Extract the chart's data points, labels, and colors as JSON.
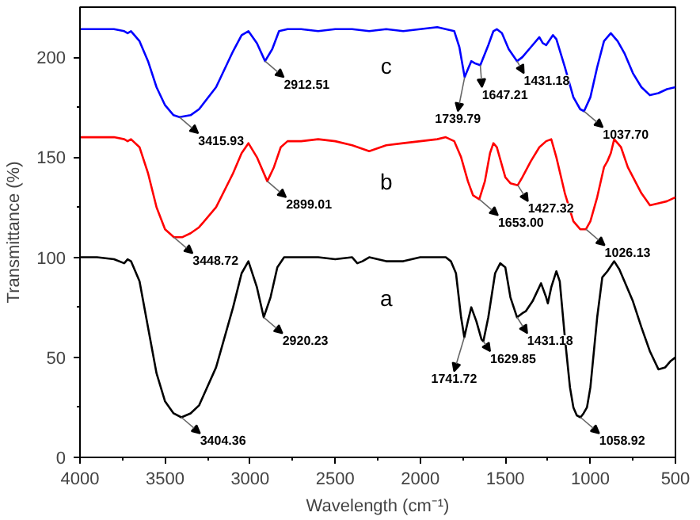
{
  "chart_data": {
    "type": "line",
    "xlabel": "Wavelength (cm⁻¹)",
    "ylabel": "Transmittance (%)",
    "xlim": [
      4000,
      500
    ],
    "ylim": [
      0,
      225
    ],
    "xticks": [
      4000,
      3500,
      3000,
      2500,
      2000,
      1500,
      1000,
      500
    ],
    "yticks": [
      0,
      50,
      100,
      150,
      200
    ],
    "grid": false,
    "legend": false,
    "marker": "none",
    "line_style": "solid",
    "series": [
      {
        "name": "a",
        "color": "#000000",
        "x": [
          4000,
          3900,
          3800,
          3740,
          3720,
          3700,
          3650,
          3600,
          3550,
          3500,
          3450,
          3404,
          3350,
          3300,
          3200,
          3100,
          3050,
          3010,
          2960,
          2920,
          2880,
          2840,
          2800,
          2700,
          2600,
          2500,
          2400,
          2370,
          2340,
          2300,
          2200,
          2100,
          2000,
          1900,
          1850,
          1820,
          1790,
          1760,
          1741,
          1720,
          1700,
          1670,
          1640,
          1629,
          1600,
          1560,
          1530,
          1500,
          1470,
          1431,
          1400,
          1380,
          1340,
          1290,
          1260,
          1250,
          1230,
          1200,
          1180,
          1150,
          1120,
          1100,
          1080,
          1058,
          1040,
          1020,
          1000,
          960,
          930,
          900,
          860,
          830,
          800,
          750,
          700,
          650,
          600,
          560,
          530,
          500
        ],
        "values": [
          100,
          100,
          99,
          97,
          99,
          98,
          88,
          65,
          42,
          28,
          22,
          20,
          22,
          26,
          45,
          75,
          92,
          98,
          85,
          70,
          80,
          95,
          100,
          100,
          100,
          99,
          100,
          97,
          98,
          100,
          98,
          98,
          100,
          100,
          100,
          98,
          92,
          70,
          60,
          68,
          75,
          68,
          59,
          58,
          70,
          92,
          97,
          95,
          80,
          70,
          72,
          73,
          78,
          87,
          80,
          77,
          85,
          93,
          88,
          60,
          35,
          25,
          21,
          20,
          22,
          25,
          35,
          70,
          90,
          93,
          98,
          94,
          88,
          78,
          65,
          53,
          44,
          45,
          48,
          50
        ]
      },
      {
        "name": "b",
        "color": "#ff0000",
        "x": [
          4000,
          3900,
          3800,
          3740,
          3720,
          3700,
          3650,
          3600,
          3550,
          3500,
          3448,
          3400,
          3350,
          3300,
          3200,
          3100,
          3050,
          3010,
          2960,
          2899,
          2860,
          2820,
          2780,
          2700,
          2600,
          2500,
          2400,
          2300,
          2200,
          2100,
          2000,
          1900,
          1850,
          1800,
          1760,
          1720,
          1690,
          1653,
          1620,
          1590,
          1570,
          1550,
          1500,
          1470,
          1427,
          1400,
          1350,
          1300,
          1260,
          1230,
          1200,
          1150,
          1100,
          1060,
          1026,
          1000,
          960,
          920,
          900,
          880,
          860,
          820,
          780,
          700,
          650,
          600,
          550,
          500
        ],
        "values": [
          160,
          160,
          160,
          159,
          158,
          159,
          155,
          142,
          125,
          114,
          110,
          110,
          112,
          115,
          125,
          142,
          152,
          157,
          150,
          138,
          145,
          155,
          158,
          158,
          159,
          158,
          156,
          153,
          156,
          157,
          158,
          159,
          160,
          158,
          150,
          138,
          131,
          129,
          138,
          152,
          157,
          155,
          140,
          137,
          136,
          140,
          148,
          155,
          158,
          159,
          150,
          132,
          118,
          114,
          114,
          118,
          130,
          145,
          148,
          152,
          159,
          155,
          145,
          132,
          126,
          127,
          128,
          130
        ]
      },
      {
        "name": "c",
        "color": "#0000ff",
        "x": [
          4000,
          3900,
          3800,
          3740,
          3720,
          3700,
          3650,
          3600,
          3550,
          3500,
          3450,
          3415,
          3350,
          3300,
          3200,
          3100,
          3050,
          3010,
          2960,
          2912,
          2870,
          2830,
          2780,
          2700,
          2600,
          2500,
          2400,
          2300,
          2200,
          2100,
          2000,
          1900,
          1850,
          1800,
          1770,
          1739,
          1715,
          1700,
          1680,
          1647,
          1600,
          1570,
          1550,
          1520,
          1480,
          1431,
          1400,
          1350,
          1300,
          1280,
          1260,
          1220,
          1200,
          1150,
          1100,
          1060,
          1037,
          1000,
          960,
          920,
          880,
          840,
          800,
          750,
          700,
          650,
          600,
          550,
          500
        ],
        "values": [
          214,
          214,
          214,
          213,
          212,
          213,
          208,
          198,
          185,
          176,
          171,
          170,
          171,
          174,
          185,
          203,
          211,
          213,
          207,
          198,
          204,
          213,
          214,
          214,
          213,
          214,
          214,
          213,
          214,
          213,
          214,
          215,
          214,
          213,
          205,
          190,
          195,
          198,
          197,
          196,
          206,
          213,
          214,
          212,
          204,
          198,
          200,
          205,
          210,
          207,
          206,
          211,
          209,
          195,
          180,
          174,
          173,
          180,
          195,
          208,
          212,
          208,
          202,
          192,
          185,
          181,
          182,
          184,
          185
        ]
      }
    ],
    "annotations": [
      {
        "text": "3404.36",
        "x": 3404,
        "y": 20
      },
      {
        "text": "2920.23",
        "x": 2920,
        "y": 70
      },
      {
        "text": "1741.72",
        "x": 1741,
        "y": 60
      },
      {
        "text": "1629.85",
        "x": 1629,
        "y": 58
      },
      {
        "text": "1431.18",
        "x": 1431,
        "y": 70
      },
      {
        "text": "1058.92",
        "x": 1058,
        "y": 20
      },
      {
        "text": "3448.72",
        "x": 3448,
        "y": 110
      },
      {
        "text": "2899.01",
        "x": 2899,
        "y": 138
      },
      {
        "text": "1653.00",
        "x": 1653,
        "y": 129
      },
      {
        "text": "1427.32",
        "x": 1427,
        "y": 136
      },
      {
        "text": "1026.13",
        "x": 1026,
        "y": 114
      },
      {
        "text": "3415.93",
        "x": 3415,
        "y": 170
      },
      {
        "text": "2912.51",
        "x": 2912,
        "y": 198
      },
      {
        "text": "1739.79",
        "x": 1739,
        "y": 190
      },
      {
        "text": "1647.21",
        "x": 1647,
        "y": 196
      },
      {
        "text": "1431.18",
        "x": 1431,
        "y": 198
      },
      {
        "text": "1037.70",
        "x": 1037,
        "y": 173
      }
    ]
  }
}
